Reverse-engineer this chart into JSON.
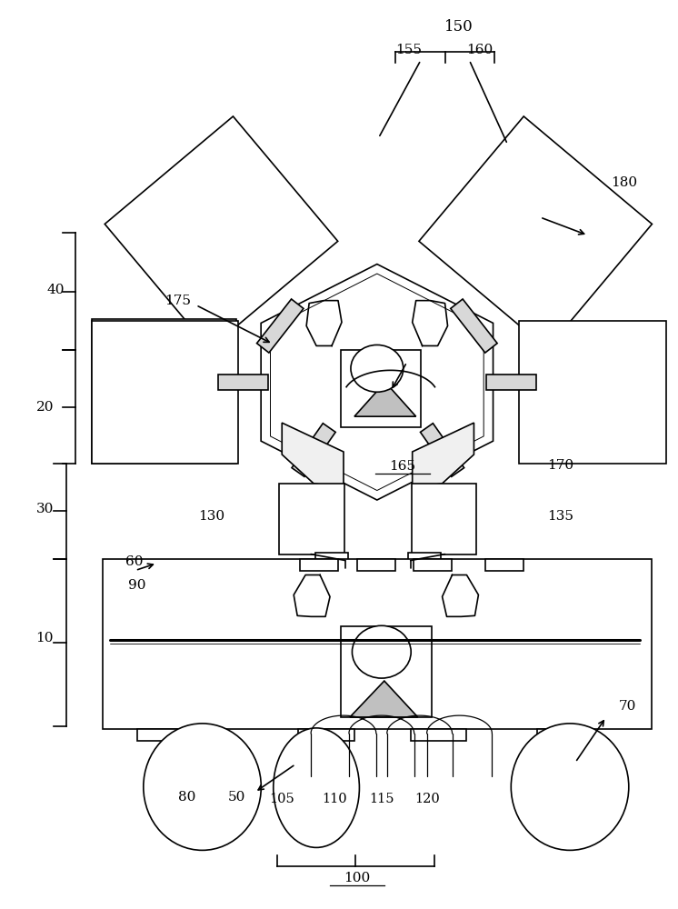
{
  "bg_color": "#ffffff",
  "line_color": "#000000",
  "fig_width": 7.46,
  "fig_height": 10.0,
  "lw": 1.2
}
